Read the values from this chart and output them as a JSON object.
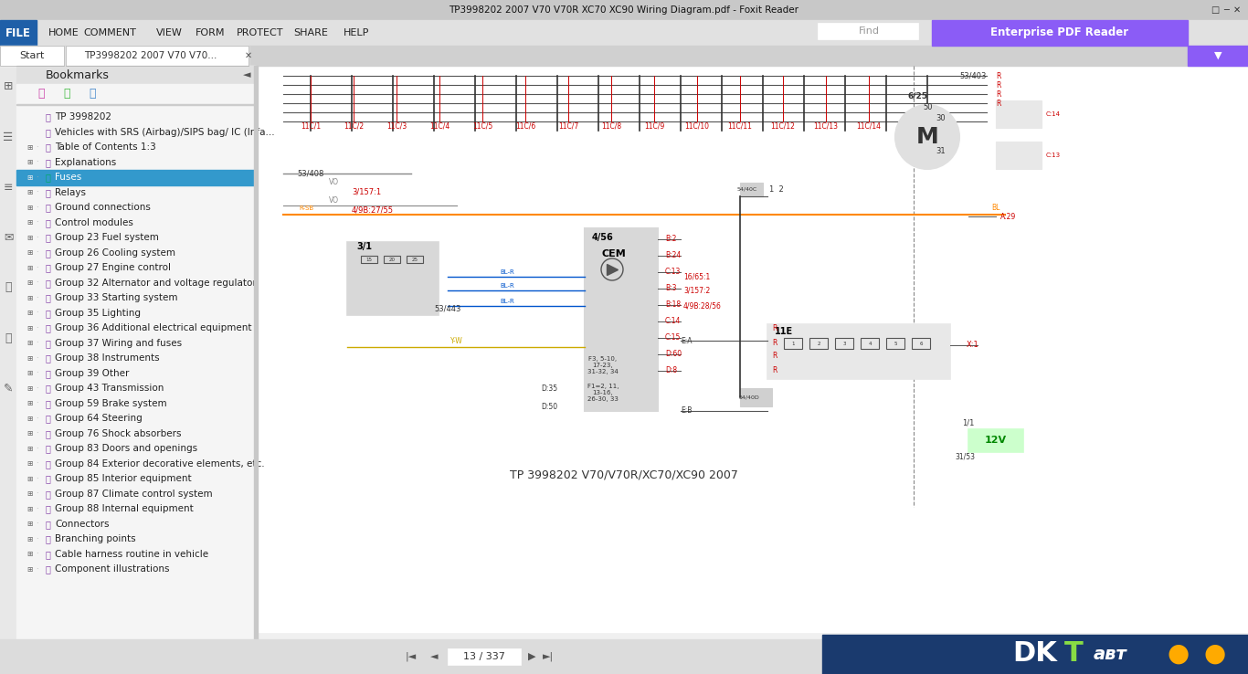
{
  "title_bar": "TP3998202 2007 V70 V70R XC70 XC90 Wiring Diagram.pdf - Foxit Reader",
  "tab_label": "TP3998202 2007 V70 V70...",
  "tab_start": "Start",
  "page_info": "13 / 337",
  "bookmark_header": "Bookmarks",
  "bookmarks": [
    "TP 3998202",
    "Vehicles with SRS (Airbag)/SIPS bag/ IC (Infa...",
    "Table of Contents 1:3",
    "Explanations",
    "Fuses",
    "Relays",
    "Ground connections",
    "Control modules",
    "Group 23 Fuel system",
    "Group 26 Cooling system",
    "Group 27 Engine control",
    "Group 32 Alternator and voltage regulator",
    "Group 33 Starting system",
    "Group 35 Lighting",
    "Group 36 Additional electrical equipment",
    "Group 37 Wiring and fuses",
    "Group 38 Instruments",
    "Group 39 Other",
    "Group 43 Transmission",
    "Group 59 Brake system",
    "Group 64 Steering",
    "Group 76 Shock absorbers",
    "Group 83 Doors and openings",
    "Group 84 Exterior decorative elements, etc.",
    "Group 85 Interior equipment",
    "Group 87 Climate control system",
    "Group 88 Internal equipment",
    "Connectors",
    "Branching points",
    "Cable harness routine in vehicle",
    "Component illustrations"
  ],
  "selected_bookmark": 4,
  "menu_items": [
    "FILE",
    "HOME",
    "COMMENT",
    "VIEW",
    "FORM",
    "PROTECT",
    "SHARE",
    "HELP"
  ],
  "enterprise_label": "Enterprise PDF Reader",
  "bg_color": "#f0f0f0",
  "titlebar_bg": "#d4d0c8",
  "menubar_bg": "#e8e8e8",
  "file_btn_color": "#1e5fa8",
  "tab_bg": "#ffffff",
  "bookmark_bg": "#f5f5f5",
  "selected_bg": "#3399cc",
  "selected_fg": "#ffffff",
  "bookmark_fg": "#222222",
  "enterprise_bg": "#8b5cf6",
  "sidebar_bg": "#f0f0f0",
  "diagram_bg": "#ffffff",
  "toolbar_bg": "#d9d9d9"
}
